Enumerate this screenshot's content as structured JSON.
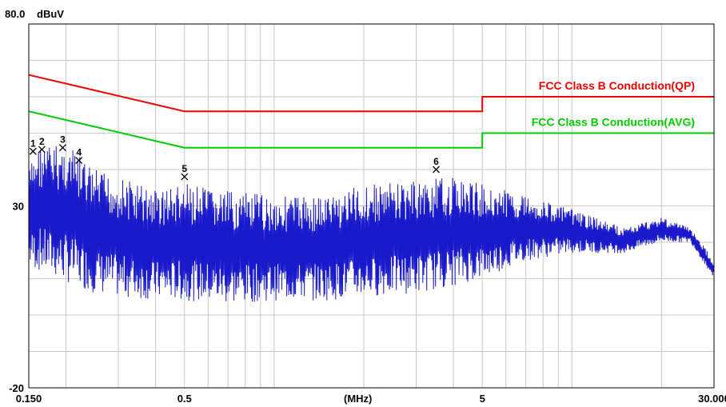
{
  "chart_data": {
    "type": "line",
    "title": "",
    "xlabel": "(MHz)",
    "ylabel": "dBuV",
    "x_scale": "log",
    "xlim": [
      0.15,
      30
    ],
    "ylim": [
      -20,
      80
    ],
    "y_top_label": "80.0",
    "x_tick_labels": [
      {
        "value": 0.15,
        "label": "0.150"
      },
      {
        "value": 0.5,
        "label": "0.5"
      },
      {
        "value": 5,
        "label": "5"
      },
      {
        "value": 30,
        "label": "30.000"
      }
    ],
    "y_tick_labels": [
      {
        "value": 30,
        "label": "30"
      },
      {
        "value": -20,
        "label": "-20"
      }
    ],
    "grid": true,
    "series": [
      {
        "name": "FCC Class B Conduction(QP)",
        "color": "#ee0000",
        "points": [
          [
            0.15,
            66
          ],
          [
            0.5,
            56
          ],
          [
            5,
            56
          ],
          [
            5,
            60
          ],
          [
            30,
            60
          ]
        ]
      },
      {
        "name": "FCC Class B Conduction(AVG)",
        "color": "#00cc00",
        "points": [
          [
            0.15,
            56
          ],
          [
            0.5,
            46
          ],
          [
            5,
            46
          ],
          [
            5,
            50
          ],
          [
            30,
            50
          ]
        ]
      },
      {
        "name": "",
        "color": "#1a1acc",
        "envelope": {
          "peaks": [
            [
              0.15,
              40
            ],
            [
              0.16,
              47
            ],
            [
              0.18,
              47
            ],
            [
              0.2,
              47
            ],
            [
              0.25,
              40
            ],
            [
              0.3,
              38
            ],
            [
              0.4,
              35
            ],
            [
              0.5,
              36
            ],
            [
              0.7,
              34
            ],
            [
              1,
              33
            ],
            [
              1.5,
              33
            ],
            [
              2,
              36
            ],
            [
              3,
              37
            ],
            [
              4,
              38
            ],
            [
              5,
              36
            ],
            [
              7,
              33
            ],
            [
              10,
              29
            ],
            [
              15,
              24
            ],
            [
              20,
              27
            ],
            [
              25,
              24
            ],
            [
              30,
              15
            ]
          ],
          "valleys": [
            [
              0.15,
              13
            ],
            [
              0.2,
              9
            ],
            [
              0.25,
              6
            ],
            [
              0.3,
              5
            ],
            [
              0.4,
              4
            ],
            [
              0.5,
              4
            ],
            [
              0.7,
              3
            ],
            [
              1,
              4
            ],
            [
              1.5,
              4
            ],
            [
              2,
              5
            ],
            [
              3,
              6
            ],
            [
              4,
              8
            ],
            [
              5,
              10
            ],
            [
              7,
              15
            ],
            [
              10,
              17
            ],
            [
              15,
              17
            ],
            [
              20,
              20
            ],
            [
              25,
              20
            ],
            [
              30,
              10
            ]
          ]
        }
      }
    ],
    "markers": [
      {
        "label": "1",
        "x": 0.155,
        "y": 45
      },
      {
        "label": "2",
        "x": 0.166,
        "y": 45.5
      },
      {
        "label": "3",
        "x": 0.195,
        "y": 46
      },
      {
        "label": "4",
        "x": 0.221,
        "y": 42.5
      },
      {
        "label": "5",
        "x": 0.5,
        "y": 38
      },
      {
        "label": "6",
        "x": 3.5,
        "y": 40
      }
    ],
    "colors": {
      "grid": "#c8c8c8",
      "frame": "#000000"
    }
  }
}
